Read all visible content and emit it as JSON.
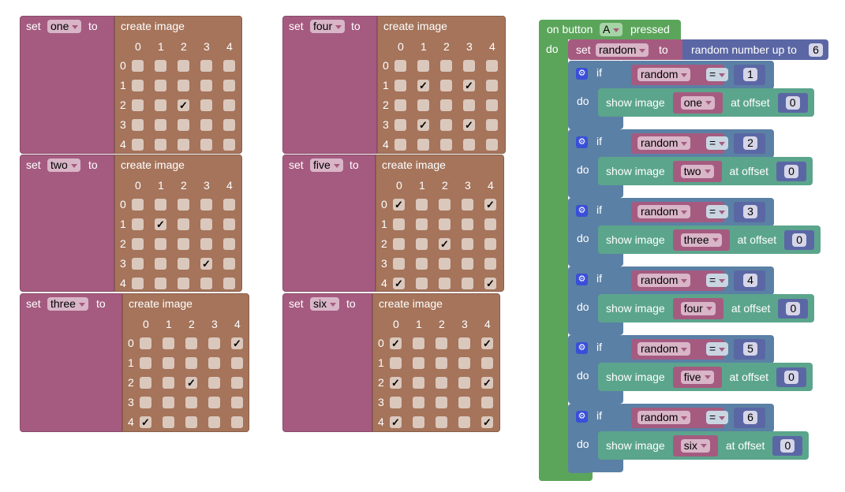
{
  "colors": {
    "variables": "#A55B80",
    "images": "#A5745B",
    "events": "#5BA55B",
    "logic": "#5B80A5",
    "basic": "#5BA58C",
    "math": "#5B67A5"
  },
  "labels": {
    "set": "set",
    "to": "to",
    "create_image": "create image",
    "do": "do",
    "if": "if",
    "show_image": "show image",
    "at_offset": "at offset",
    "check": "✓"
  },
  "grid_headers": [
    "0",
    "1",
    "2",
    "3",
    "4"
  ],
  "images": [
    {
      "variable": "one",
      "checked": [
        [
          2,
          2
        ]
      ]
    },
    {
      "variable": "two",
      "checked": [
        [
          1,
          1
        ],
        [
          3,
          3
        ]
      ]
    },
    {
      "variable": "three",
      "checked": [
        [
          0,
          4
        ],
        [
          2,
          2
        ],
        [
          4,
          0
        ]
      ]
    },
    {
      "variable": "four",
      "checked": [
        [
          1,
          1
        ],
        [
          1,
          3
        ],
        [
          3,
          1
        ],
        [
          3,
          3
        ]
      ]
    },
    {
      "variable": "five",
      "checked": [
        [
          0,
          0
        ],
        [
          0,
          4
        ],
        [
          2,
          2
        ],
        [
          4,
          0
        ],
        [
          4,
          4
        ]
      ]
    },
    {
      "variable": "six",
      "checked": [
        [
          0,
          0
        ],
        [
          0,
          4
        ],
        [
          2,
          0
        ],
        [
          2,
          4
        ],
        [
          4,
          0
        ],
        [
          4,
          4
        ]
      ]
    }
  ],
  "event": {
    "prefix": "on button",
    "button": "A",
    "suffix": "pressed",
    "set_var": "random",
    "random_label": "random number up to",
    "random_max": "6"
  },
  "conditions": [
    {
      "var": "random",
      "op": "=",
      "value": "1",
      "image": "one",
      "offset": "0"
    },
    {
      "var": "random",
      "op": "=",
      "value": "2",
      "image": "two",
      "offset": "0"
    },
    {
      "var": "random",
      "op": "=",
      "value": "3",
      "image": "three",
      "offset": "0"
    },
    {
      "var": "random",
      "op": "=",
      "value": "4",
      "image": "four",
      "offset": "0"
    },
    {
      "var": "random",
      "op": "=",
      "value": "5",
      "image": "five",
      "offset": "0"
    },
    {
      "var": "random",
      "op": "=",
      "value": "6",
      "image": "six",
      "offset": "0"
    }
  ]
}
